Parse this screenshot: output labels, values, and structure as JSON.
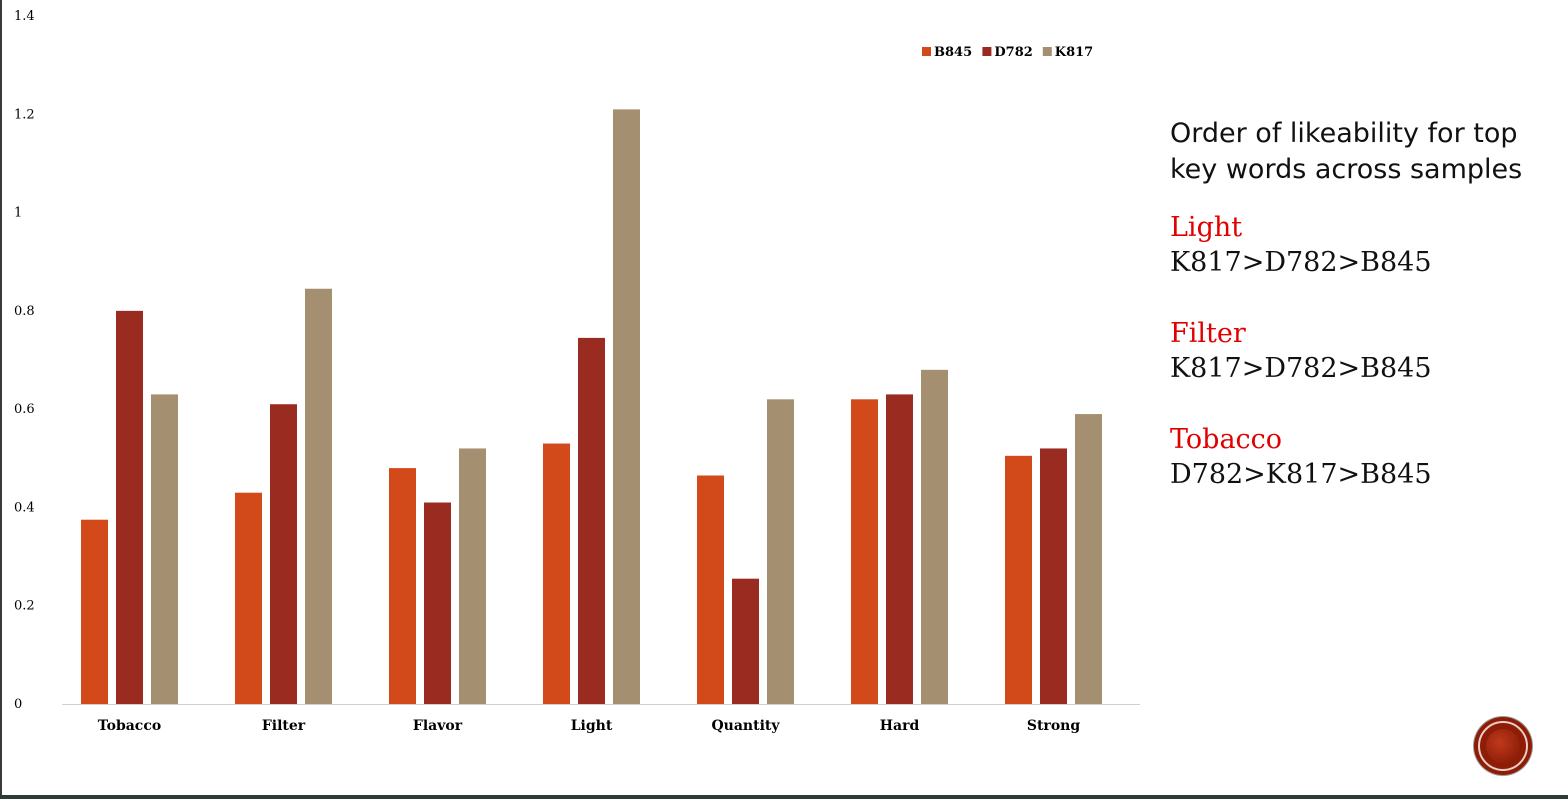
{
  "colors": {
    "B845": "#d24a1a",
    "D782": "#9a2b20",
    "K817": "#a49070",
    "keyword": "#e00000",
    "logo": "#8f1d06"
  },
  "chart_data": {
    "type": "bar",
    "categories": [
      "Tobacco",
      "Filter",
      "Flavor",
      "Light",
      "Quantity",
      "Hard",
      "Strong"
    ],
    "series": [
      {
        "name": "B845",
        "values": [
          0.375,
          0.43,
          0.48,
          0.53,
          0.465,
          0.62,
          0.505
        ]
      },
      {
        "name": "D782",
        "values": [
          0.8,
          0.61,
          0.41,
          0.745,
          0.255,
          0.63,
          0.52
        ]
      },
      {
        "name": "K817",
        "values": [
          0.63,
          0.845,
          0.52,
          1.21,
          0.62,
          0.68,
          0.59
        ]
      }
    ],
    "yticks": [
      "0",
      "0.2",
      "0.4",
      "0.6",
      "0.8",
      "1",
      "1.2",
      "1.4"
    ],
    "ylim": [
      0,
      1.4
    ],
    "legend_position": "top-right",
    "grid": false
  },
  "notes": {
    "heading": "Order of likeability for top key words across samples",
    "items": [
      {
        "keyword": "Light",
        "order": "K817>D782>B845"
      },
      {
        "keyword": "Filter",
        "order": "K817>D782>B845"
      },
      {
        "keyword": "Tobacco",
        "order": "D782>K817>B845"
      }
    ]
  },
  "logo": {
    "icon": "circle-logo-icon"
  }
}
